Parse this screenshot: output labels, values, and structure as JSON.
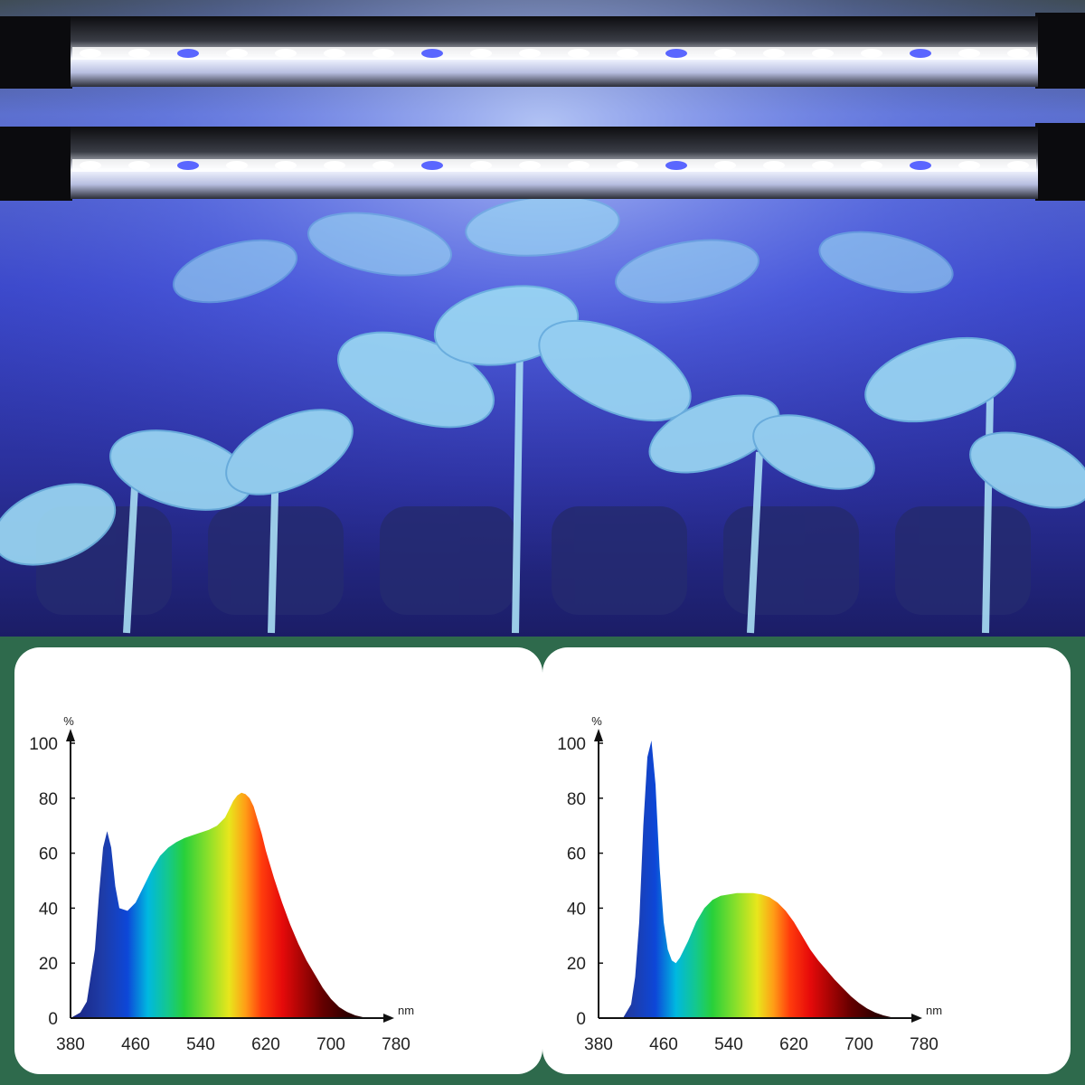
{
  "photo": {
    "subject": "two LED grow light bars illuminating tomato seedlings",
    "colors": {
      "light_glow": "#4f5bff",
      "leaf": "#8fd0f0",
      "soil": "#23265a",
      "bar_body": "#111111"
    }
  },
  "colors": {
    "background": "#2e6a4c",
    "panel": "#ffffff"
  },
  "chart_data": [
    {
      "type": "area",
      "title": "",
      "xlabel": "",
      "ylabel": "",
      "x_unit": "nm",
      "y_unit": "%",
      "xlim": [
        380,
        780
      ],
      "ylim": [
        0,
        100
      ],
      "x_ticks": [
        "380",
        "460",
        "540",
        "620",
        "700",
        "780"
      ],
      "y_ticks": [
        "0",
        "20",
        "40",
        "60",
        "80",
        "100"
      ],
      "fill": "visible-spectrum gradient",
      "x": [
        380,
        392,
        400,
        410,
        415,
        420,
        425,
        430,
        435,
        440,
        450,
        460,
        470,
        480,
        490,
        500,
        510,
        520,
        530,
        540,
        550,
        560,
        570,
        575,
        580,
        585,
        590,
        595,
        600,
        605,
        610,
        615,
        620,
        630,
        640,
        650,
        660,
        670,
        680,
        690,
        700,
        710,
        720,
        730,
        740,
        750
      ],
      "y": [
        0,
        2,
        6,
        25,
        45,
        62,
        68,
        62,
        48,
        40,
        39,
        42,
        48,
        54,
        59,
        62,
        64,
        65.5,
        66.5,
        67.5,
        68.5,
        70,
        73,
        76,
        79,
        81,
        82,
        81.5,
        80,
        77,
        72,
        67,
        61,
        51,
        42,
        34,
        27,
        21,
        16,
        11,
        7,
        4,
        2.2,
        1,
        0.3,
        0
      ]
    },
    {
      "type": "area",
      "title": "",
      "xlabel": "",
      "ylabel": "",
      "x_unit": "nm",
      "y_unit": "%",
      "xlim": [
        380,
        780
      ],
      "ylim": [
        0,
        100
      ],
      "x_ticks": [
        "380",
        "460",
        "540",
        "620",
        "700",
        "780"
      ],
      "y_ticks": [
        "0",
        "20",
        "40",
        "60",
        "80",
        "100"
      ],
      "fill": "visible-spectrum gradient",
      "x": [
        410,
        420,
        425,
        430,
        435,
        440,
        445,
        450,
        455,
        460,
        465,
        470,
        475,
        480,
        490,
        500,
        510,
        520,
        530,
        540,
        550,
        560,
        570,
        580,
        590,
        600,
        610,
        620,
        630,
        640,
        650,
        660,
        670,
        680,
        690,
        700,
        710,
        720,
        730,
        740,
        750
      ],
      "y": [
        0,
        5,
        15,
        35,
        70,
        95,
        101,
        85,
        55,
        35,
        25,
        21,
        20,
        22,
        28,
        35,
        40,
        43,
        44.5,
        45,
        45.5,
        45.5,
        45.5,
        45,
        44,
        42,
        39,
        35,
        30,
        25,
        21,
        17.5,
        14,
        11,
        8,
        5.5,
        3.5,
        2,
        1,
        0.3,
        0
      ]
    }
  ]
}
